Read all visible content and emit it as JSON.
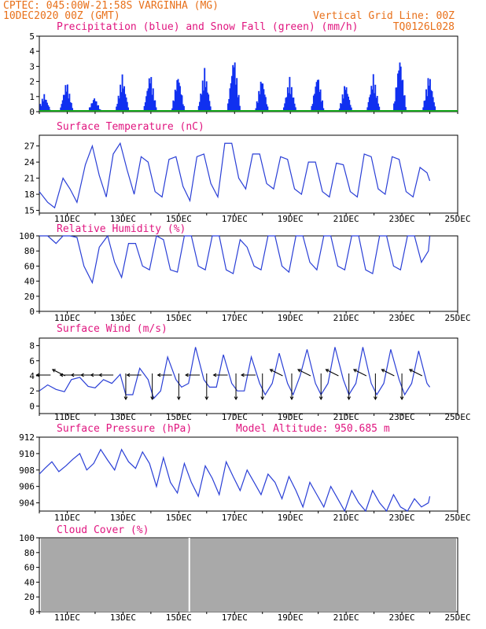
{
  "header": {
    "line1": "CPTEC:   045:00W-21:58S   VARGINHA (MG)",
    "line2": "10DEC2020 00Z (GMT)",
    "grid_note": "Vertical Grid Line: 00Z",
    "code": "TQ0126L028"
  },
  "x_ticks": [
    "11DEC",
    "13DEC",
    "15DEC",
    "17DEC",
    "19DEC",
    "21DEC",
    "23DEC",
    "25DEC"
  ],
  "colors": {
    "header": "#e8701a",
    "panel_title": "#e0157f",
    "line": "#2a3fd6",
    "bar": "#1030f0",
    "snow": "#16a51a",
    "cloud": "#a9a9a9",
    "arrow": "#000000"
  },
  "chart_data": [
    {
      "id": "precip",
      "type": "bar",
      "title": "Precipitation (blue) and Snow Fall (green) (mm/h)",
      "ylim": [
        0,
        5
      ],
      "yticks": [
        "0",
        "1",
        "2",
        "3",
        "4",
        "5"
      ],
      "x_unit": "days after 10DEC2020 00Z",
      "peaks": [
        {
          "x": 0.15,
          "y": 1.2
        },
        {
          "x": 0.95,
          "y": 2.1
        },
        {
          "x": 1.95,
          "y": 1.0
        },
        {
          "x": 2.95,
          "y": 2.5
        },
        {
          "x": 3.95,
          "y": 2.7
        },
        {
          "x": 4.95,
          "y": 2.6
        },
        {
          "x": 5.9,
          "y": 2.9
        },
        {
          "x": 6.95,
          "y": 3.9
        },
        {
          "x": 7.95,
          "y": 2.4
        },
        {
          "x": 8.95,
          "y": 2.3
        },
        {
          "x": 9.95,
          "y": 2.6
        },
        {
          "x": 10.95,
          "y": 2.0
        },
        {
          "x": 11.95,
          "y": 2.5
        },
        {
          "x": 12.9,
          "y": 3.8
        },
        {
          "x": 13.95,
          "y": 2.6
        }
      ],
      "snow": 0
    },
    {
      "id": "temp",
      "type": "line",
      "title": "Surface Temperature (nC)",
      "ylim": [
        14.5,
        29
      ],
      "yticks": [
        "15",
        "18",
        "21",
        "24",
        "27"
      ],
      "x": [
        0,
        0.3,
        0.55,
        0.85,
        1.1,
        1.35,
        1.65,
        1.9,
        2.15,
        2.4,
        2.65,
        2.9,
        3.15,
        3.4,
        3.65,
        3.9,
        4.15,
        4.4,
        4.65,
        4.9,
        5.15,
        5.4,
        5.65,
        5.9,
        6.15,
        6.4,
        6.65,
        6.9,
        7.15,
        7.4,
        7.65,
        7.9,
        8.15,
        8.4,
        8.65,
        8.9,
        9.15,
        9.4,
        9.65,
        9.9,
        10.15,
        10.4,
        10.65,
        10.9,
        11.15,
        11.4,
        11.65,
        11.9,
        12.15,
        12.4,
        12.65,
        12.9,
        13.15,
        13.4,
        13.65,
        13.9,
        14.0
      ],
      "y": [
        18.5,
        16.5,
        15.5,
        21.0,
        19.0,
        16.5,
        23.5,
        27.0,
        21.5,
        17.5,
        25.5,
        27.5,
        22.5,
        18.0,
        25.0,
        24.0,
        18.5,
        17.5,
        24.5,
        25.0,
        19.5,
        16.8,
        25.0,
        25.5,
        20.0,
        17.5,
        27.5,
        27.5,
        21.0,
        19.0,
        25.5,
        25.5,
        20.0,
        19.0,
        25.0,
        24.5,
        19.0,
        18.0,
        24.0,
        24.0,
        18.5,
        17.5,
        23.8,
        23.5,
        18.5,
        17.5,
        25.5,
        25.0,
        19.0,
        18.0,
        25.0,
        24.5,
        18.5,
        17.5,
        23.0,
        22.0,
        20.5
      ]
    },
    {
      "id": "rh",
      "type": "line",
      "title": "Relative Humidity (%)",
      "ylim": [
        0,
        100
      ],
      "yticks": [
        "0",
        "20",
        "40",
        "60",
        "80",
        "100"
      ],
      "x": [
        0,
        0.3,
        0.6,
        0.85,
        1.1,
        1.35,
        1.6,
        1.9,
        2.15,
        2.45,
        2.7,
        2.95,
        3.2,
        3.45,
        3.7,
        3.95,
        4.2,
        4.45,
        4.7,
        4.95,
        5.2,
        5.45,
        5.7,
        5.95,
        6.2,
        6.45,
        6.7,
        6.95,
        7.2,
        7.45,
        7.7,
        7.95,
        8.2,
        8.45,
        8.7,
        8.95,
        9.2,
        9.45,
        9.7,
        9.95,
        10.2,
        10.45,
        10.7,
        10.95,
        11.2,
        11.45,
        11.7,
        11.95,
        12.2,
        12.45,
        12.7,
        12.95,
        13.2,
        13.45,
        13.7,
        13.95,
        14.0
      ],
      "y": [
        100,
        100,
        90,
        100,
        100,
        98,
        60,
        38,
        85,
        100,
        65,
        45,
        90,
        90,
        60,
        55,
        100,
        95,
        55,
        52,
        100,
        100,
        60,
        55,
        100,
        100,
        55,
        50,
        95,
        85,
        60,
        55,
        100,
        100,
        60,
        52,
        100,
        100,
        65,
        55,
        100,
        100,
        60,
        55,
        100,
        100,
        55,
        50,
        100,
        100,
        60,
        55,
        100,
        100,
        65,
        80,
        100
      ]
    },
    {
      "id": "wind",
      "type": "line",
      "title": "Surface Wind (m/s)",
      "ylim": [
        -1,
        9
      ],
      "yticks": [
        "0",
        "2",
        "4",
        "6",
        "8"
      ],
      "x": [
        0,
        0.3,
        0.6,
        0.9,
        1.15,
        1.45,
        1.75,
        2.0,
        2.3,
        2.6,
        2.9,
        3.1,
        3.35,
        3.6,
        3.9,
        4.1,
        4.35,
        4.6,
        4.9,
        5.1,
        5.35,
        5.6,
        5.9,
        6.1,
        6.35,
        6.6,
        6.9,
        7.1,
        7.35,
        7.6,
        7.9,
        8.1,
        8.35,
        8.6,
        8.9,
        9.1,
        9.35,
        9.6,
        9.9,
        10.1,
        10.35,
        10.6,
        10.9,
        11.1,
        11.35,
        11.6,
        11.9,
        12.1,
        12.35,
        12.6,
        12.9,
        13.1,
        13.35,
        13.6,
        13.9,
        14.0
      ],
      "y": [
        2.0,
        2.8,
        2.2,
        1.9,
        3.5,
        3.8,
        2.6,
        2.4,
        3.5,
        3.0,
        4.2,
        1.5,
        1.5,
        5.0,
        3.5,
        1.0,
        2.0,
        6.5,
        3.5,
        2.5,
        3.0,
        7.8,
        3.5,
        2.5,
        2.5,
        6.8,
        3.0,
        2.0,
        2.0,
        6.5,
        3.0,
        1.5,
        3.0,
        7.0,
        3.0,
        1.5,
        4.0,
        7.5,
        3.0,
        1.5,
        3.0,
        7.8,
        3.5,
        1.5,
        3.0,
        7.8,
        3.0,
        1.5,
        3.0,
        7.5,
        3.5,
        1.5,
        3.0,
        7.3,
        3.0,
        2.5
      ],
      "vectors": [
        {
          "x": 0.15,
          "dir": "W"
        },
        {
          "x": 0.7,
          "dir": "NW"
        },
        {
          "x": 1.0,
          "dir": "W"
        },
        {
          "x": 1.4,
          "dir": "W"
        },
        {
          "x": 1.75,
          "dir": "W"
        },
        {
          "x": 2.1,
          "dir": "W"
        },
        {
          "x": 2.4,
          "dir": "W"
        },
        {
          "x": 3.1,
          "dir": "S"
        },
        {
          "x": 4.05,
          "dir": "S"
        },
        {
          "x": 5.0,
          "dir": "S"
        },
        {
          "x": 6.0,
          "dir": "S"
        },
        {
          "x": 7.05,
          "dir": "S"
        },
        {
          "x": 8.0,
          "dir": "S"
        },
        {
          "x": 9.05,
          "dir": "S"
        },
        {
          "x": 10.1,
          "dir": "S"
        },
        {
          "x": 11.1,
          "dir": "S"
        },
        {
          "x": 12.05,
          "dir": "S"
        },
        {
          "x": 13.0,
          "dir": "S"
        },
        {
          "x": 3.4,
          "dir": "W"
        },
        {
          "x": 4.5,
          "dir": "W"
        },
        {
          "x": 5.5,
          "dir": "W"
        },
        {
          "x": 6.5,
          "dir": "W"
        },
        {
          "x": 7.5,
          "dir": "W"
        },
        {
          "x": 8.5,
          "dir": "NW"
        },
        {
          "x": 9.5,
          "dir": "NW"
        },
        {
          "x": 10.5,
          "dir": "NW"
        },
        {
          "x": 11.5,
          "dir": "NW"
        },
        {
          "x": 12.5,
          "dir": "NW"
        },
        {
          "x": 13.5,
          "dir": "NW"
        }
      ]
    },
    {
      "id": "pres",
      "type": "line",
      "title": "Surface Pressure (hPa)",
      "altitude": "Model Altitude: 950.685 m",
      "ylim": [
        903,
        912
      ],
      "yticks": [
        "904",
        "906",
        "908",
        "910",
        "912"
      ],
      "x": [
        0,
        0.2,
        0.45,
        0.7,
        0.95,
        1.2,
        1.45,
        1.7,
        1.95,
        2.2,
        2.45,
        2.7,
        2.95,
        3.2,
        3.45,
        3.7,
        3.95,
        4.2,
        4.45,
        4.7,
        4.95,
        5.2,
        5.45,
        5.7,
        5.95,
        6.2,
        6.45,
        6.7,
        6.95,
        7.2,
        7.45,
        7.7,
        7.95,
        8.2,
        8.45,
        8.7,
        8.95,
        9.2,
        9.45,
        9.7,
        9.95,
        10.2,
        10.45,
        10.7,
        10.95,
        11.2,
        11.45,
        11.7,
        11.95,
        12.2,
        12.45,
        12.7,
        12.95,
        13.2,
        13.45,
        13.7,
        13.95,
        14.0
      ],
      "y": [
        907.5,
        908.2,
        909.0,
        907.8,
        908.5,
        909.3,
        910.0,
        908.0,
        908.8,
        910.5,
        909.2,
        908.0,
        910.5,
        909.0,
        908.2,
        910.2,
        908.8,
        906.0,
        909.5,
        906.5,
        905.2,
        908.8,
        906.5,
        904.8,
        908.5,
        907.0,
        905.0,
        909.0,
        907.2,
        905.5,
        908.0,
        906.5,
        905.0,
        907.5,
        906.5,
        904.5,
        907.2,
        905.5,
        903.5,
        906.5,
        905.0,
        903.5,
        906.0,
        904.5,
        903.0,
        905.5,
        904.0,
        903.0,
        905.5,
        904.0,
        903.0,
        905.0,
        903.5,
        903.0,
        904.5,
        903.5,
        904.0,
        904.8
      ]
    },
    {
      "id": "cloud",
      "type": "area",
      "title": "Cloud Cover (%)",
      "ylim": [
        0,
        100
      ],
      "yticks": [
        "0",
        "20",
        "40",
        "60",
        "80",
        "100"
      ],
      "value": 99,
      "dip": {
        "x": 5.35,
        "y": 0
      }
    }
  ]
}
